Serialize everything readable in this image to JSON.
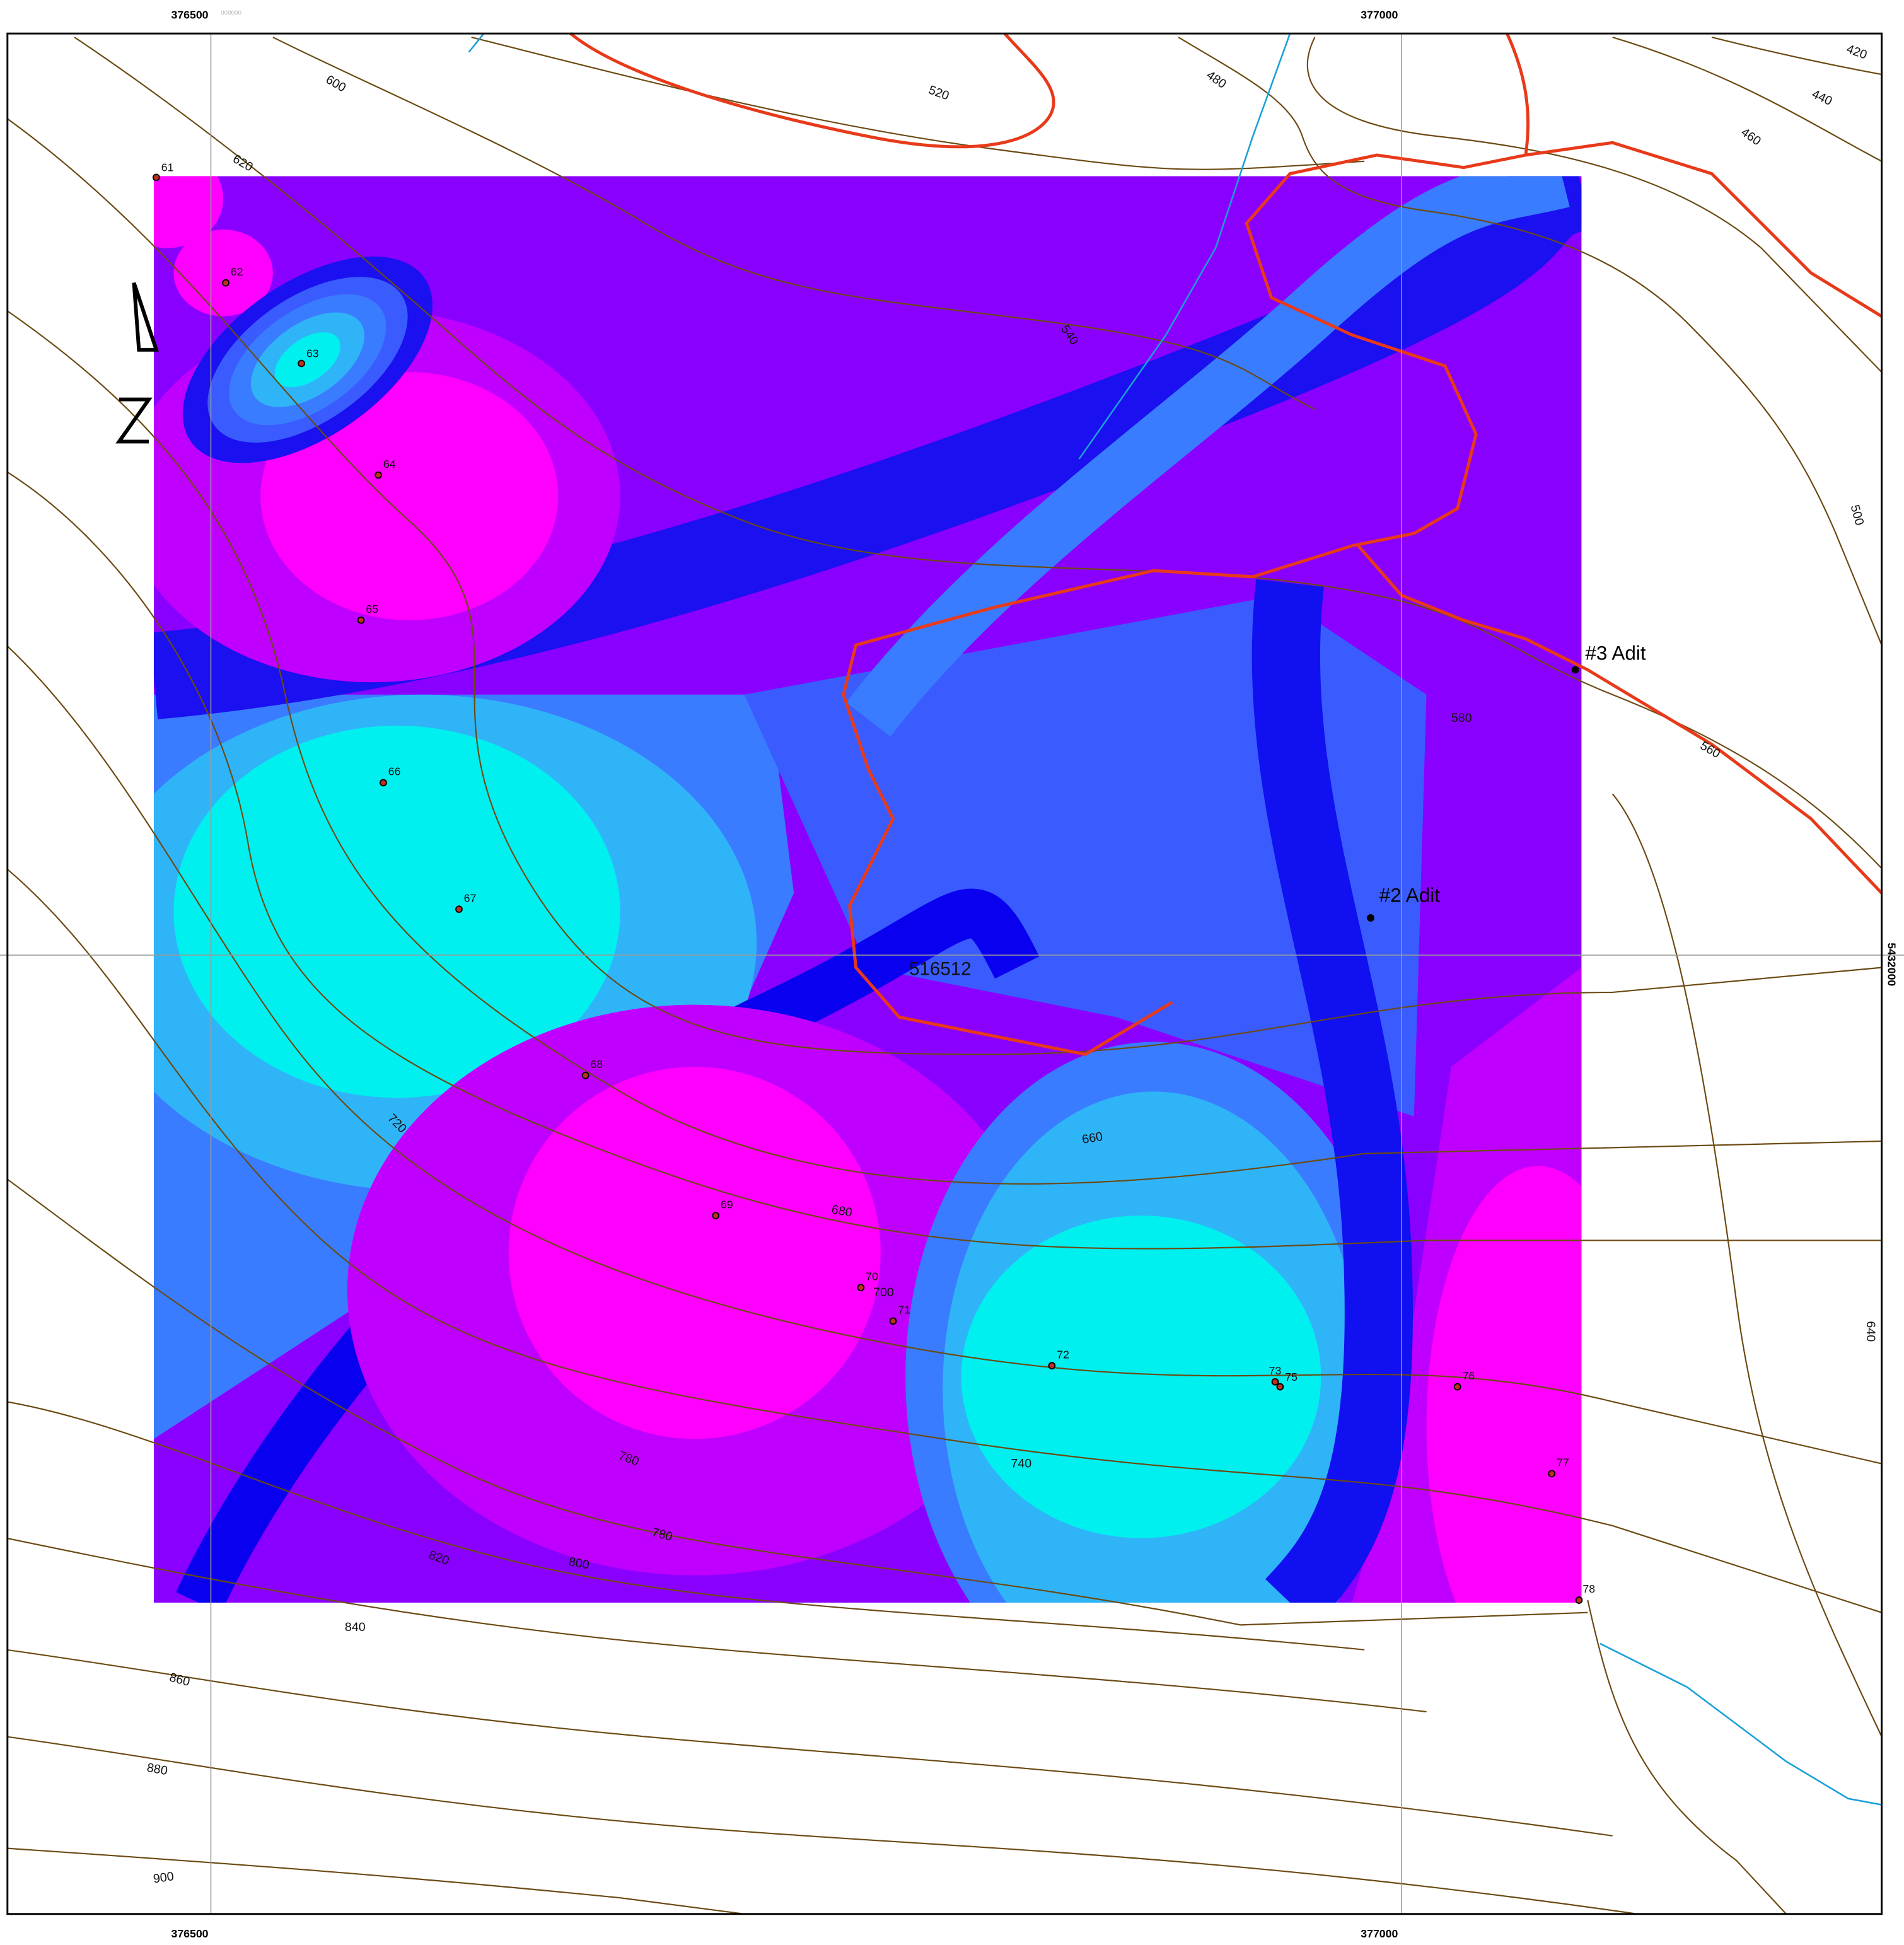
{
  "grid_labels": {
    "top": [
      "376500",
      "377000"
    ],
    "bottom": [
      "376500",
      "377000"
    ],
    "right": [
      "5432000"
    ],
    "suffix": "000000"
  },
  "contour_labels": [
    "420",
    "440",
    "460",
    "480",
    "500",
    "520",
    "540",
    "560",
    "580",
    "600",
    "620",
    "640",
    "660",
    "680",
    "700",
    "720",
    "740",
    "780",
    "780",
    "800",
    "820",
    "840",
    "860",
    "880",
    "900"
  ],
  "points": [
    "61",
    "62",
    "63",
    "64",
    "65",
    "66",
    "67",
    "68",
    "69",
    "70",
    "71",
    "72",
    "73",
    "75",
    "76",
    "77",
    "78"
  ],
  "adits": [
    "#3 Adit",
    "#2 Adit"
  ],
  "center_label": "516512"
}
